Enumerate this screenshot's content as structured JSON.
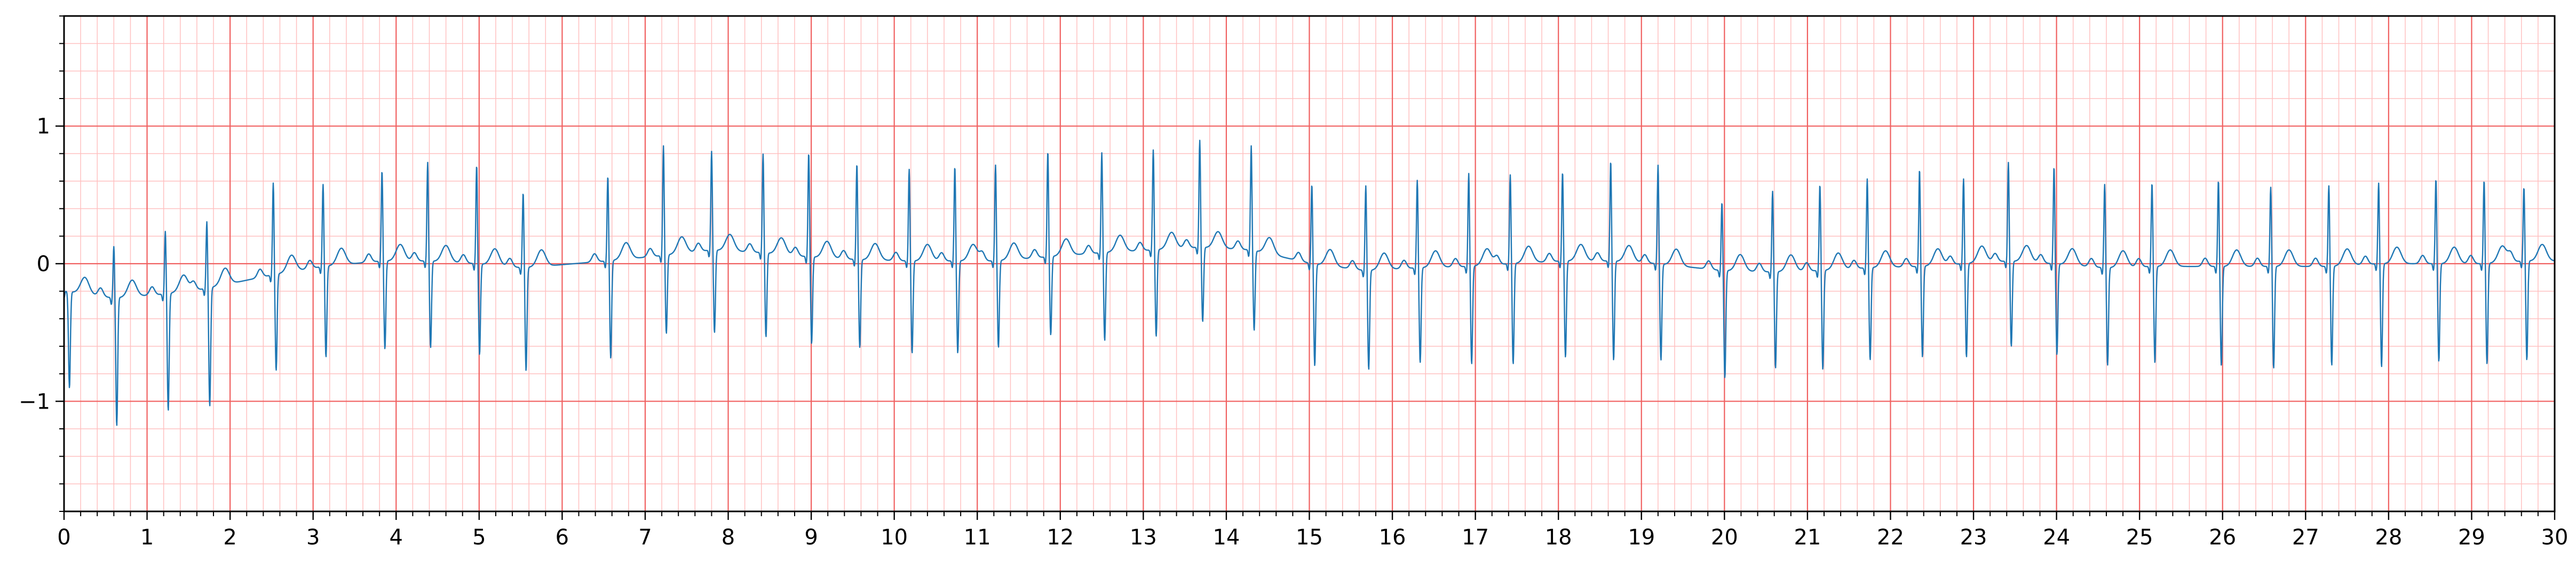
{
  "chart_data": {
    "type": "line",
    "title": "",
    "xlabel": "",
    "ylabel": "",
    "xlim": [
      0,
      30
    ],
    "ylim": [
      -1.8,
      1.8
    ],
    "x_ticks": [
      "0",
      "1",
      "2",
      "3",
      "4",
      "5",
      "6",
      "7",
      "8",
      "9",
      "10",
      "11",
      "12",
      "13",
      "14",
      "15",
      "16",
      "17",
      "18",
      "19",
      "20",
      "21",
      "22",
      "23",
      "24",
      "25",
      "26",
      "27",
      "28",
      "29",
      "30"
    ],
    "x_tick_values": [
      0,
      1,
      2,
      3,
      4,
      5,
      6,
      7,
      8,
      9,
      10,
      11,
      12,
      13,
      14,
      15,
      16,
      17,
      18,
      19,
      20,
      21,
      22,
      23,
      24,
      25,
      26,
      27,
      28,
      29,
      30
    ],
    "y_ticks": [
      "−1",
      "0",
      "1"
    ],
    "y_tick_values": [
      -1,
      0,
      1
    ],
    "grid": {
      "major_step_x": 1,
      "minor_step_x": 0.2,
      "major_step_y": 1,
      "minor_step_y": 0.2,
      "major_color": "#f06060",
      "minor_color": "#ffc0c0"
    },
    "series": [
      {
        "color": "#1f77b4",
        "beats": [
          {
            "t": 0.03,
            "r": 0.0,
            "s": -0.7,
            "base": -0.2
          },
          {
            "t": 0.6,
            "r": 0.38,
            "s": -0.93,
            "base": -0.25
          },
          {
            "t": 1.22,
            "r": 0.46,
            "s": -0.85,
            "base": -0.22
          },
          {
            "t": 1.72,
            "r": 0.49,
            "s": -0.86,
            "base": -0.18
          },
          {
            "t": 2.52,
            "r": 0.67,
            "s": -0.7,
            "base": -0.08
          },
          {
            "t": 3.12,
            "r": 0.6,
            "s": -0.66,
            "base": -0.02
          },
          {
            "t": 3.83,
            "r": 0.66,
            "s": -0.64,
            "base": 0.02
          },
          {
            "t": 4.38,
            "r": 0.72,
            "s": -0.63,
            "base": 0.02
          },
          {
            "t": 4.97,
            "r": 0.72,
            "s": -0.66,
            "base": 0.0
          },
          {
            "t": 5.53,
            "r": 0.55,
            "s": -0.75,
            "base": -0.03
          },
          {
            "t": 6.55,
            "r": 0.62,
            "s": -0.71,
            "base": 0.02
          },
          {
            "t": 7.22,
            "r": 0.8,
            "s": -0.57,
            "base": 0.06
          },
          {
            "t": 7.8,
            "r": 0.72,
            "s": -0.6,
            "base": 0.1
          },
          {
            "t": 8.42,
            "r": 0.72,
            "s": -0.61,
            "base": 0.08
          },
          {
            "t": 8.97,
            "r": 0.76,
            "s": -0.63,
            "base": 0.05
          },
          {
            "t": 9.55,
            "r": 0.7,
            "s": -0.64,
            "base": 0.03
          },
          {
            "t": 10.18,
            "r": 0.67,
            "s": -0.67,
            "base": 0.02
          },
          {
            "t": 10.73,
            "r": 0.69,
            "s": -0.67,
            "base": 0.02
          },
          {
            "t": 11.22,
            "r": 0.7,
            "s": -0.63,
            "base": 0.02
          },
          {
            "t": 11.85,
            "r": 0.77,
            "s": -0.57,
            "base": 0.05
          },
          {
            "t": 12.5,
            "r": 0.73,
            "s": -0.64,
            "base": 0.08
          },
          {
            "t": 13.12,
            "r": 0.73,
            "s": -0.63,
            "base": 0.1
          },
          {
            "t": 13.68,
            "r": 0.78,
            "s": -0.54,
            "base": 0.12
          },
          {
            "t": 14.3,
            "r": 0.76,
            "s": -0.58,
            "base": 0.1
          },
          {
            "t": 15.03,
            "r": 0.58,
            "s": -0.74,
            "base": 0.0
          },
          {
            "t": 15.68,
            "r": 0.62,
            "s": -0.72,
            "base": -0.05
          },
          {
            "t": 16.3,
            "r": 0.64,
            "s": -0.69,
            "base": -0.03
          },
          {
            "t": 16.92,
            "r": 0.68,
            "s": -0.71,
            "base": -0.02
          },
          {
            "t": 17.42,
            "r": 0.65,
            "s": -0.73,
            "base": 0.0
          },
          {
            "t": 18.05,
            "r": 0.65,
            "s": -0.7,
            "base": 0.02
          },
          {
            "t": 18.63,
            "r": 0.73,
            "s": -0.72,
            "base": 0.02
          },
          {
            "t": 19.2,
            "r": 0.72,
            "s": -0.7,
            "base": 0.0
          },
          {
            "t": 19.97,
            "r": 0.5,
            "s": -0.78,
            "base": -0.05
          },
          {
            "t": 20.58,
            "r": 0.59,
            "s": -0.7,
            "base": -0.06
          },
          {
            "t": 21.15,
            "r": 0.63,
            "s": -0.72,
            "base": -0.05
          },
          {
            "t": 21.72,
            "r": 0.65,
            "s": -0.67,
            "base": -0.03
          },
          {
            "t": 22.35,
            "r": 0.71,
            "s": -0.66,
            "base": -0.02
          },
          {
            "t": 22.88,
            "r": 0.62,
            "s": -0.68,
            "base": 0.0
          },
          {
            "t": 23.42,
            "r": 0.72,
            "s": -0.62,
            "base": 0.02
          },
          {
            "t": 23.97,
            "r": 0.71,
            "s": -0.66,
            "base": 0.0
          },
          {
            "t": 24.58,
            "r": 0.61,
            "s": -0.71,
            "base": -0.03
          },
          {
            "t": 25.15,
            "r": 0.61,
            "s": -0.7,
            "base": -0.02
          },
          {
            "t": 25.95,
            "r": 0.63,
            "s": -0.72,
            "base": -0.02
          },
          {
            "t": 26.58,
            "r": 0.58,
            "s": -0.74,
            "base": -0.02
          },
          {
            "t": 27.28,
            "r": 0.59,
            "s": -0.72,
            "base": -0.02
          },
          {
            "t": 27.88,
            "r": 0.59,
            "s": -0.75,
            "base": 0.0
          },
          {
            "t": 28.57,
            "r": 0.62,
            "s": -0.71,
            "base": 0.0
          },
          {
            "t": 29.15,
            "r": 0.61,
            "s": -0.73,
            "base": 0.0
          },
          {
            "t": 29.63,
            "r": 0.54,
            "s": -0.72,
            "base": 0.02
          }
        ]
      }
    ]
  }
}
